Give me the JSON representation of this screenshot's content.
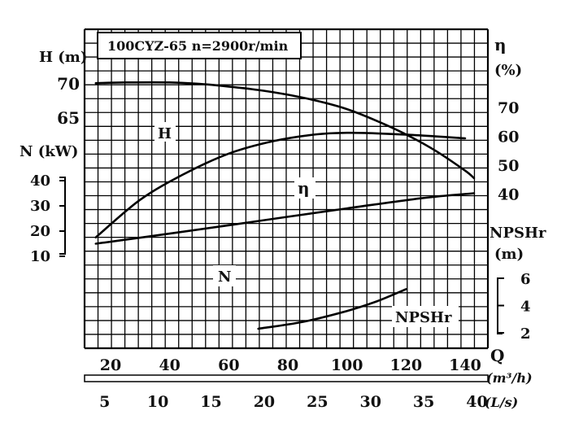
{
  "chart_data": {
    "type": "line",
    "title": "100CYZ-65 n=2900r/min",
    "x_bottom_label": "Q",
    "x_units": [
      "(m³/h)",
      "(L/s)"
    ],
    "x_ticks_m3h": [
      "20",
      "40",
      "60",
      "80",
      "100",
      "120",
      "140"
    ],
    "x_ticks_ls": [
      "5",
      "10",
      "15",
      "20",
      "25",
      "30",
      "35",
      "40"
    ],
    "left_axes": {
      "head": {
        "label": "H (m)",
        "ticks": [
          "70",
          "65"
        ]
      },
      "power": {
        "label": "N (kW)",
        "ticks": [
          "40",
          "30",
          "20",
          "10"
        ]
      }
    },
    "right_axes": {
      "efficiency": {
        "label": "η",
        "unit": "(%)",
        "ticks": [
          "70",
          "60",
          "50",
          "40"
        ]
      },
      "npshr": {
        "label": "NPSHr",
        "unit": "(m)",
        "ticks": [
          "6",
          "4",
          "2"
        ]
      }
    },
    "curve_labels": {
      "head": "H",
      "efficiency": "η",
      "power": "N",
      "npshr": "NPSHr"
    },
    "series": [
      {
        "name": "H",
        "unit": "m",
        "x": [
          15,
          25,
          40,
          50,
          60,
          70,
          80,
          90,
          100,
          110,
          120,
          130,
          140,
          143
        ],
        "y": [
          70.1,
          70.2,
          70.2,
          70.0,
          69.6,
          69.1,
          68.4,
          67.5,
          66.3,
          64.6,
          62.6,
          60.2,
          57.3,
          56.2
        ]
      },
      {
        "name": "η",
        "unit": "%",
        "x": [
          15,
          30,
          45,
          60,
          75,
          90,
          100,
          110,
          125,
          140
        ],
        "y": [
          25,
          38,
          47,
          54,
          58.3,
          60.7,
          61.2,
          61.0,
          60.3,
          59.3
        ]
      },
      {
        "name": "N",
        "unit": "kW",
        "x": [
          15,
          40,
          70,
          100,
          125,
          143
        ],
        "y": [
          15,
          19,
          24,
          29,
          33,
          35
        ]
      },
      {
        "name": "NPSHr",
        "unit": "m",
        "x": [
          70,
          85,
          100,
          110,
          120
        ],
        "y": [
          2.3,
          2.8,
          3.6,
          4.3,
          5.2
        ]
      }
    ],
    "xlim_m3h": [
      5,
      145
    ],
    "grid": true
  }
}
